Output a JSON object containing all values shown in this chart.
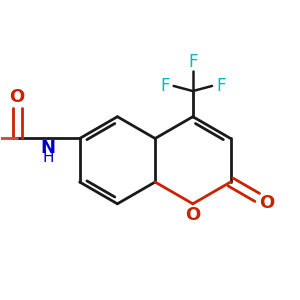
{
  "bg": "#ffffff",
  "bond_color": "#1a1a1a",
  "oxy_color": "#cc2200",
  "nit_color": "#0000cc",
  "flu_color": "#00bbbb",
  "vin_color": "#cc4444",
  "lw": 2.0,
  "BL": 0.85,
  "xlim": [
    -3.0,
    2.8
  ],
  "ylim": [
    -1.8,
    2.2
  ]
}
